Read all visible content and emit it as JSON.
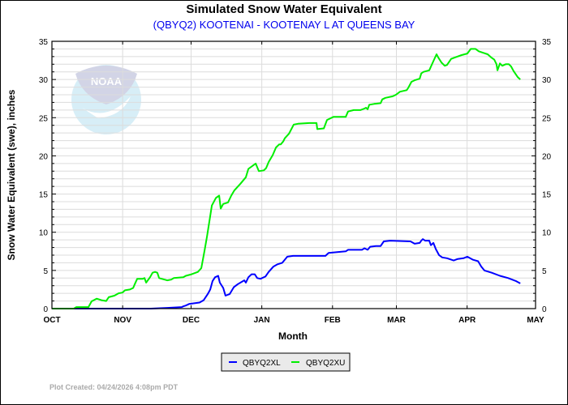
{
  "chart_data": {
    "type": "line",
    "title": "Simulated Snow Water Equivalent",
    "subtitle": "(QBYQ2) KOOTENAI - KOOTENAY L AT QUEENS BAY",
    "xlabel": "Month",
    "ylabel": "Snow Water Equivalent (swe),  inches",
    "x_unit": "days since Oct 1",
    "xlim": [
      0,
      212
    ],
    "ylim": [
      0,
      35
    ],
    "yticks": [
      0,
      5,
      10,
      15,
      20,
      25,
      30,
      35
    ],
    "xticks": [
      {
        "label": "OCT",
        "day": 0
      },
      {
        "label": "NOV",
        "day": 31
      },
      {
        "label": "DEC",
        "day": 61
      },
      {
        "label": "JAN",
        "day": 92
      },
      {
        "label": "FEB",
        "day": 123
      },
      {
        "label": "MAR",
        "day": 151
      },
      {
        "label": "APR",
        "day": 182
      },
      {
        "label": "MAY",
        "day": 212
      }
    ],
    "grid": true,
    "legend_position": "bottom-center",
    "series": [
      {
        "name": "QBYQ2XL",
        "color": "#0000ff",
        "points": [
          [
            0,
            0
          ],
          [
            43.4,
            0
          ],
          [
            50.5,
            0.1
          ],
          [
            56.9,
            0.2
          ],
          [
            57.6,
            0.3
          ],
          [
            58.7,
            0.4
          ],
          [
            60.1,
            0.6
          ],
          [
            64.7,
            0.8
          ],
          [
            66.5,
            1.1
          ],
          [
            68.3,
            1.9
          ],
          [
            69.4,
            2.5
          ],
          [
            70.4,
            3.6
          ],
          [
            71.5,
            4.1
          ],
          [
            72.9,
            4.3
          ],
          [
            73.6,
            3.4
          ],
          [
            75.1,
            2.7
          ],
          [
            76.1,
            1.7
          ],
          [
            77.9,
            1.9
          ],
          [
            79.7,
            2.8
          ],
          [
            81.5,
            3.2
          ],
          [
            84.3,
            3.7
          ],
          [
            85,
            3.4
          ],
          [
            86.1,
            4.1
          ],
          [
            87.5,
            4.5
          ],
          [
            88.9,
            4.5
          ],
          [
            90,
            4.0
          ],
          [
            91.4,
            3.9
          ],
          [
            93.6,
            4.2
          ],
          [
            95,
            4.8
          ],
          [
            97.1,
            5.5
          ],
          [
            98.9,
            5.8
          ],
          [
            101,
            6.0
          ],
          [
            103.2,
            6.8
          ],
          [
            105.7,
            6.9
          ],
          [
            119.9,
            6.9
          ],
          [
            121.3,
            7.3
          ],
          [
            128.8,
            7.5
          ],
          [
            129.8,
            7.7
          ],
          [
            135.9,
            7.7
          ],
          [
            137,
            7.9
          ],
          [
            138.4,
            7.7
          ],
          [
            139.5,
            8.1
          ],
          [
            142,
            8.2
          ],
          [
            144.1,
            8.2
          ],
          [
            145.5,
            8.8
          ],
          [
            148.3,
            8.9
          ],
          [
            157.2,
            8.8
          ],
          [
            159,
            8.5
          ],
          [
            161.2,
            8.6
          ],
          [
            161.9,
            8.9
          ],
          [
            162.6,
            9.1
          ],
          [
            163.6,
            8.9
          ],
          [
            165.4,
            8.9
          ],
          [
            166.1,
            8.3
          ],
          [
            167.2,
            8.6
          ],
          [
            168.3,
            7.8
          ],
          [
            169.7,
            7.0
          ],
          [
            171.1,
            6.7
          ],
          [
            173.2,
            6.6
          ],
          [
            176.1,
            6.3
          ],
          [
            177.9,
            6.5
          ],
          [
            180.4,
            6.6
          ],
          [
            182.1,
            6.8
          ],
          [
            184.6,
            6.4
          ],
          [
            186.8,
            6.2
          ],
          [
            188.2,
            5.5
          ],
          [
            189.6,
            5.0
          ],
          [
            192.8,
            4.7
          ],
          [
            196.4,
            4.3
          ],
          [
            200,
            4.0
          ],
          [
            203.5,
            3.6
          ],
          [
            205.3,
            3.3
          ]
        ]
      },
      {
        "name": "QBYQ2XU",
        "color": "#00ee00",
        "points": [
          [
            0,
            0
          ],
          [
            9.6,
            0
          ],
          [
            10.7,
            0.2
          ],
          [
            16,
            0.2
          ],
          [
            17.4,
            0.95
          ],
          [
            19.6,
            1.3
          ],
          [
            21.7,
            1.1
          ],
          [
            23.8,
            1.0
          ],
          [
            24.9,
            1.5
          ],
          [
            27.4,
            1.7
          ],
          [
            29.2,
            2.0
          ],
          [
            30.9,
            2.1
          ],
          [
            32,
            2.4
          ],
          [
            34.2,
            2.5
          ],
          [
            35.6,
            2.7
          ],
          [
            36.3,
            3.2
          ],
          [
            37.4,
            3.9
          ],
          [
            39.8,
            3.9
          ],
          [
            40.6,
            4.0
          ],
          [
            41.3,
            3.4
          ],
          [
            43,
            4.1
          ],
          [
            44.1,
            4.7
          ],
          [
            45.2,
            4.8
          ],
          [
            46.2,
            4.7
          ],
          [
            47,
            4.0
          ],
          [
            50.5,
            3.7
          ],
          [
            52.3,
            3.8
          ],
          [
            53.4,
            4.0
          ],
          [
            57.6,
            4.1
          ],
          [
            58.7,
            4.3
          ],
          [
            61.2,
            4.5
          ],
          [
            64,
            4.8
          ],
          [
            65.5,
            5.3
          ],
          [
            66.9,
            7.6
          ],
          [
            68,
            9.5
          ],
          [
            70.1,
            13.5
          ],
          [
            71.9,
            14.5
          ],
          [
            73.3,
            14.8
          ],
          [
            74,
            13.1
          ],
          [
            75.1,
            13.7
          ],
          [
            77.2,
            13.9
          ],
          [
            78.6,
            14.8
          ],
          [
            80,
            15.5
          ],
          [
            82.5,
            16.3
          ],
          [
            85,
            17.2
          ],
          [
            86.1,
            18.3
          ],
          [
            89.3,
            19.0
          ],
          [
            90.7,
            18.0
          ],
          [
            92.9,
            18.1
          ],
          [
            93.9,
            18.4
          ],
          [
            95,
            19.2
          ],
          [
            96.8,
            20.1
          ],
          [
            98.2,
            21.1
          ],
          [
            99.6,
            21.5
          ],
          [
            100.3,
            21.5
          ],
          [
            101.4,
            21.9
          ],
          [
            102.1,
            22.3
          ],
          [
            103.9,
            22.9
          ],
          [
            106,
            24.1
          ],
          [
            107.8,
            24.2
          ],
          [
            112.8,
            24.3
          ],
          [
            116,
            24.3
          ],
          [
            116.3,
            23.5
          ],
          [
            119.2,
            23.6
          ],
          [
            120.6,
            24.7
          ],
          [
            123.4,
            25.1
          ],
          [
            128.8,
            25.1
          ],
          [
            129.8,
            25.8
          ],
          [
            132.3,
            26.0
          ],
          [
            135.2,
            26.0
          ],
          [
            137,
            26.2
          ],
          [
            137.7,
            26.3
          ],
          [
            138.4,
            26.1
          ],
          [
            139.1,
            26.7
          ],
          [
            141.2,
            26.8
          ],
          [
            144.1,
            26.9
          ],
          [
            144.8,
            27.4
          ],
          [
            146.2,
            27.6
          ],
          [
            149.4,
            27.8
          ],
          [
            150.8,
            28.0
          ],
          [
            152.6,
            28.4
          ],
          [
            155.5,
            28.6
          ],
          [
            156.2,
            28.9
          ],
          [
            157.6,
            29.7
          ],
          [
            159,
            29.9
          ],
          [
            161.2,
            30.1
          ],
          [
            161.9,
            30.8
          ],
          [
            162.9,
            31.0
          ],
          [
            165.4,
            31.2
          ],
          [
            167.2,
            32.4
          ],
          [
            168.6,
            33.3
          ],
          [
            169.3,
            32.9
          ],
          [
            170.8,
            32.2
          ],
          [
            172.2,
            31.8
          ],
          [
            173.2,
            31.9
          ],
          [
            175,
            32.7
          ],
          [
            176.8,
            32.9
          ],
          [
            179.6,
            33.2
          ],
          [
            182.1,
            33.4
          ],
          [
            183.6,
            34.0
          ],
          [
            185.7,
            34.0
          ],
          [
            187.1,
            33.7
          ],
          [
            188.9,
            33.5
          ],
          [
            191,
            33.3
          ],
          [
            192.5,
            32.9
          ],
          [
            193.9,
            32.6
          ],
          [
            194.9,
            32.0
          ],
          [
            195.3,
            31.2
          ],
          [
            196.4,
            32.1
          ],
          [
            197.4,
            31.8
          ],
          [
            198.9,
            32.0
          ],
          [
            200.3,
            32.0
          ],
          [
            201.3,
            31.7
          ],
          [
            202.4,
            31.1
          ],
          [
            204.2,
            30.3
          ],
          [
            205.3,
            30.0
          ]
        ]
      }
    ],
    "logo": "NOAA"
  },
  "footer": "Plot Created: 04/24/2026 4:08pm PDT"
}
